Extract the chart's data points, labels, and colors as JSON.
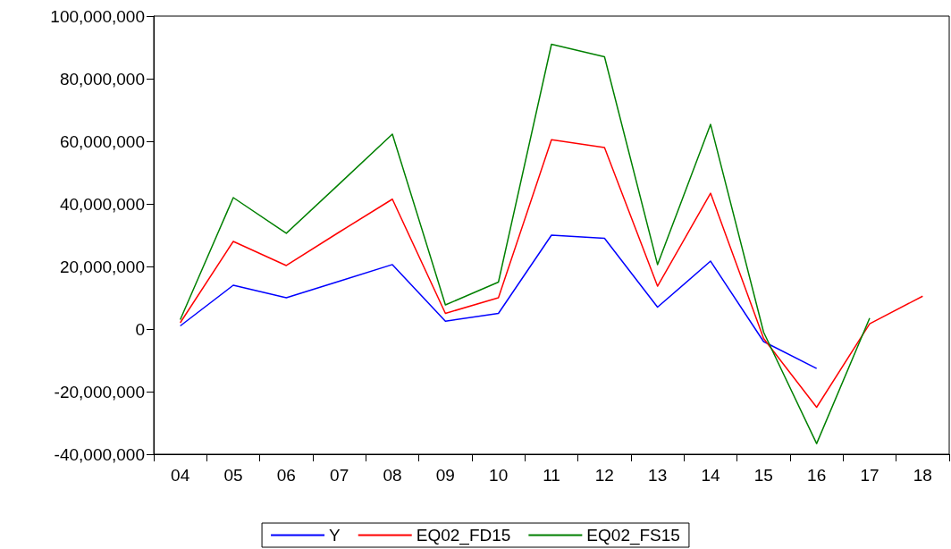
{
  "chart_data": {
    "type": "line",
    "categories": [
      "04",
      "05",
      "06",
      "07",
      "08",
      "09",
      "10",
      "11",
      "12",
      "13",
      "14",
      "15",
      "16",
      "17",
      "18"
    ],
    "series": [
      {
        "name": "Y",
        "color": "#0000ff",
        "values": [
          1000000,
          14000000,
          10000000,
          15300000,
          20600000,
          2500000,
          5000000,
          30000000,
          29000000,
          7000000,
          21700000,
          -4000000,
          -12600000,
          null,
          null
        ]
      },
      {
        "name": "EQ02_FD15",
        "color": "#ff0000",
        "values": [
          2000000,
          28000000,
          20300000,
          31000000,
          41500000,
          5000000,
          10000000,
          60500000,
          58000000,
          13700000,
          43400000,
          -3000000,
          -25000000,
          1700000,
          10500000
        ]
      },
      {
        "name": "EQ02_FS15",
        "color": "#008000",
        "values": [
          3000000,
          42000000,
          30600000,
          46400000,
          62300000,
          7700000,
          15000000,
          91000000,
          87000000,
          20600000,
          65400000,
          -1000000,
          -36600000,
          3500000,
          null
        ]
      }
    ],
    "ylim": [
      -40000000,
      100000000
    ],
    "yticks": [
      {
        "value": -40000000,
        "label": "-40,000,000"
      },
      {
        "value": -20000000,
        "label": "-20,000,000"
      },
      0,
      {
        "value": 20000000,
        "label": "20,000,000"
      },
      {
        "value": 40000000,
        "label": "40,000,000"
      },
      {
        "value": 60000000,
        "label": "60,000,000"
      },
      {
        "value": 80000000,
        "label": "80,000,000"
      },
      {
        "value": 100000000,
        "label": "100,000,000"
      }
    ],
    "grid": false,
    "legend": "bottom",
    "marker": "none",
    "line_style": "solid"
  }
}
